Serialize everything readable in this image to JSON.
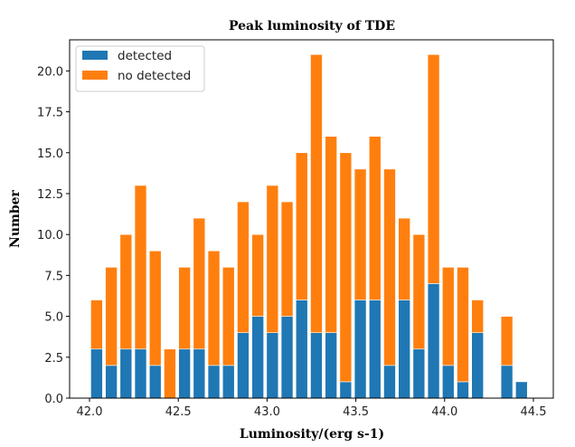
{
  "chart_data": {
    "type": "bar",
    "stacked": true,
    "title": "Peak luminosity of TDE",
    "xlabel": "Luminosity/(erg s-1)",
    "ylabel": "Number",
    "xlim": [
      41.888,
      44.612
    ],
    "ylim": [
      0,
      21.9
    ],
    "xticks": [
      "42.0",
      "42.5",
      "43.0",
      "43.5",
      "44.0",
      "44.5"
    ],
    "xtick_values": [
      42.0,
      42.5,
      43.0,
      43.5,
      44.0,
      44.5
    ],
    "yticks": [
      "0.0",
      "2.5",
      "5.0",
      "7.5",
      "10.0",
      "12.5",
      "15.0",
      "17.5",
      "20.0"
    ],
    "ytick_values": [
      0,
      2.5,
      5,
      7.5,
      10,
      12.5,
      15,
      17.5,
      20
    ],
    "bin_start": 41.999,
    "bin_width": 0.0825,
    "legend_position": "top-left",
    "series": [
      {
        "name": "detected",
        "color": "#1f77b4",
        "values": [
          3,
          2,
          3,
          3,
          2,
          0,
          3,
          3,
          2,
          2,
          4,
          5,
          4,
          5,
          6,
          4,
          4,
          1,
          6,
          6,
          2,
          6,
          3,
          7,
          2,
          1,
          4,
          0,
          2,
          1
        ]
      },
      {
        "name": "no detected",
        "color": "#ff7f0e",
        "values": [
          3,
          6,
          7,
          10,
          7,
          3,
          5,
          8,
          7,
          6,
          8,
          5,
          9,
          7,
          9,
          17,
          12,
          14,
          8,
          10,
          12,
          5,
          7,
          14,
          6,
          7,
          2,
          0,
          3,
          0
        ]
      }
    ]
  }
}
